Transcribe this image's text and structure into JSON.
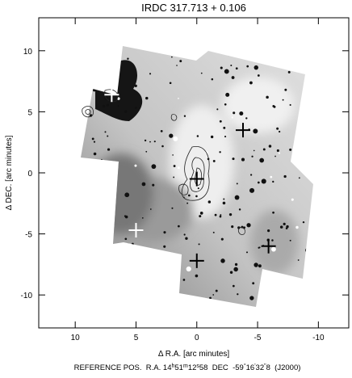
{
  "chart_data": {
    "type": "image",
    "title": "IRDC 317.713 + 0.106",
    "xlabel": "Δ R.A. [arc minutes]",
    "ylabel": "Δ DEC. [arc minutes]",
    "xlim": [
      13,
      -12.5
    ],
    "ylim": [
      -12.7,
      12.7
    ],
    "xticks": [
      10,
      5,
      0,
      -5,
      -10
    ],
    "yticks": [
      -10,
      -5,
      0,
      5,
      10
    ],
    "series": [
      {
        "color": "#ffffff",
        "x": [
          7,
          5
        ],
        "y": [
          6.4,
          -4.7
        ]
      },
      {
        "color": "#000000",
        "x": [
          -3.8,
          0,
          0,
          -5.9
        ],
        "y": [
          3.5,
          -0.5,
          -7.2,
          -6
        ]
      }
    ],
    "footer": [
      {
        "text": "REFERENCE POS.  R.A. 14"
      },
      {
        "text": "h",
        "sup": true
      },
      {
        "text": "51"
      },
      {
        "text": "m",
        "sup": true
      },
      {
        "text": "12"
      },
      {
        "text": "s",
        "sup": true
      },
      {
        "text": "58  DEC  -59"
      },
      {
        "text": "°",
        "sup": true
      },
      {
        "text": "16"
      },
      {
        "text": "'",
        "sup": true
      },
      {
        "text": "32"
      },
      {
        "text": "\"",
        "sup": true
      },
      {
        "text": "8  (J2000)"
      }
    ]
  }
}
